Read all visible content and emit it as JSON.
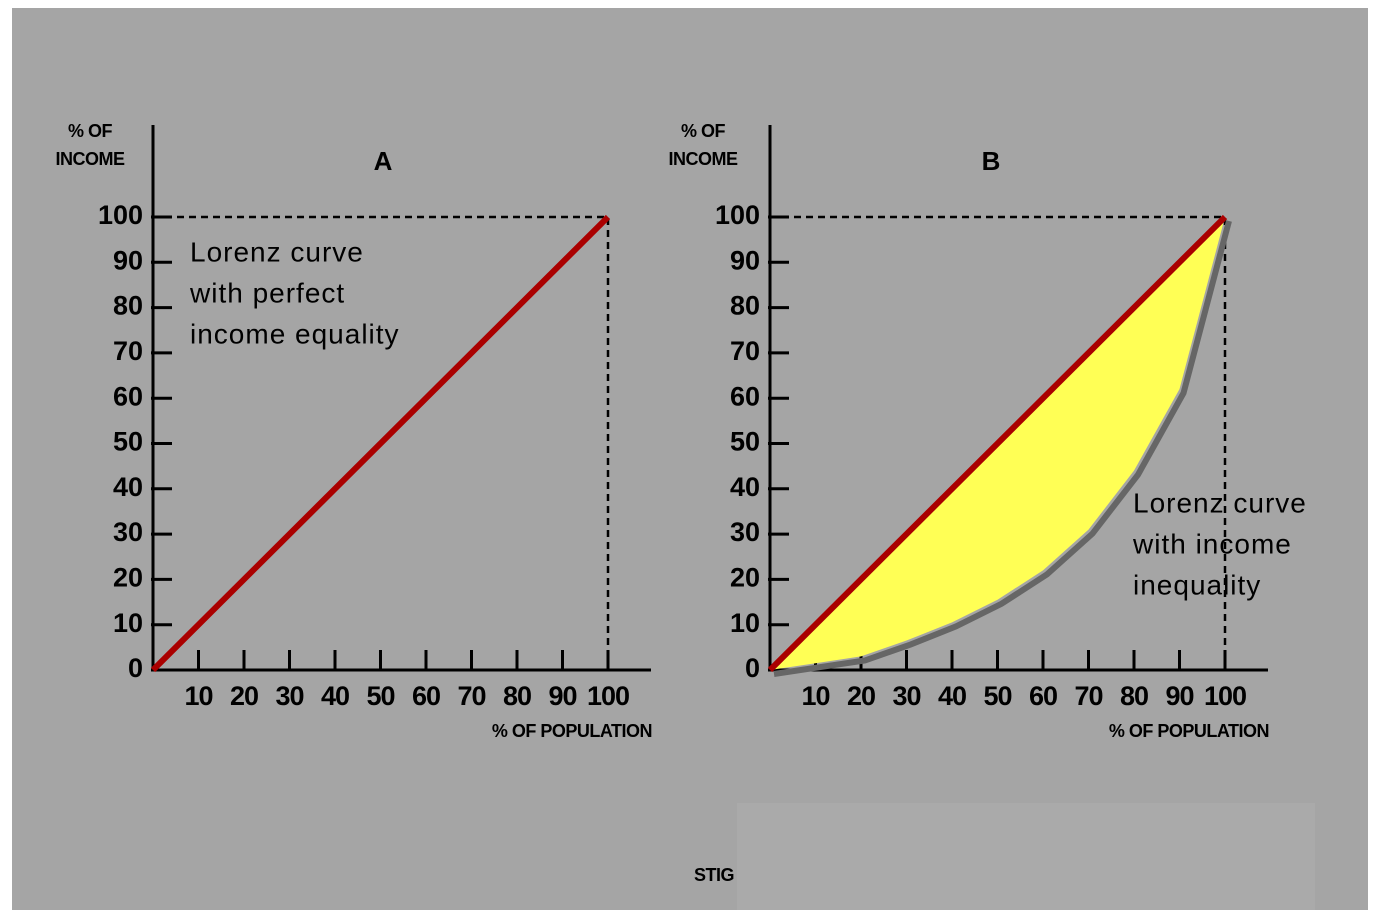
{
  "chart_data": [
    {
      "type": "line",
      "title": "A",
      "ylabel": [
        "% OF",
        "INCOME"
      ],
      "xlabel": "% OF POPULATION",
      "xlim": [
        0,
        100
      ],
      "ylim": [
        0,
        100
      ],
      "xticks": [
        10,
        20,
        30,
        40,
        50,
        60,
        70,
        80,
        90,
        100
      ],
      "yticks": [
        0,
        10,
        20,
        30,
        40,
        50,
        60,
        70,
        80,
        90,
        100
      ],
      "annotation": [
        "Lorenz curve",
        "with perfect",
        "income equality"
      ],
      "series": [
        {
          "x": [
            0,
            100
          ],
          "values": [
            0,
            100
          ],
          "color": "#aa0000"
        }
      ]
    },
    {
      "type": "line",
      "title": "B",
      "ylabel": [
        "% OF",
        "INCOME"
      ],
      "xlabel": "% OF POPULATION",
      "xlim": [
        0,
        100
      ],
      "ylim": [
        0,
        100
      ],
      "xticks": [
        10,
        20,
        30,
        40,
        50,
        60,
        70,
        80,
        90,
        100
      ],
      "yticks": [
        0,
        10,
        20,
        30,
        40,
        50,
        60,
        70,
        80,
        90,
        100
      ],
      "annotation": [
        "Lorenz curve",
        "with income",
        "inequality"
      ],
      "fill_between_color": "#ffff55",
      "shadow_color": "#666666",
      "series": [
        {
          "x": [
            0,
            10,
            20,
            30,
            40,
            50,
            60,
            70,
            80,
            90,
            100
          ],
          "values": [
            0,
            1.5,
            3,
            6.5,
            10.5,
            15.5,
            22,
            31,
            44,
            62,
            100
          ],
          "color": "#ffff55"
        },
        {
          "x": [
            0,
            100
          ],
          "values": [
            0,
            100
          ],
          "color": "#aa0000"
        }
      ]
    }
  ],
  "caption": "STIG"
}
